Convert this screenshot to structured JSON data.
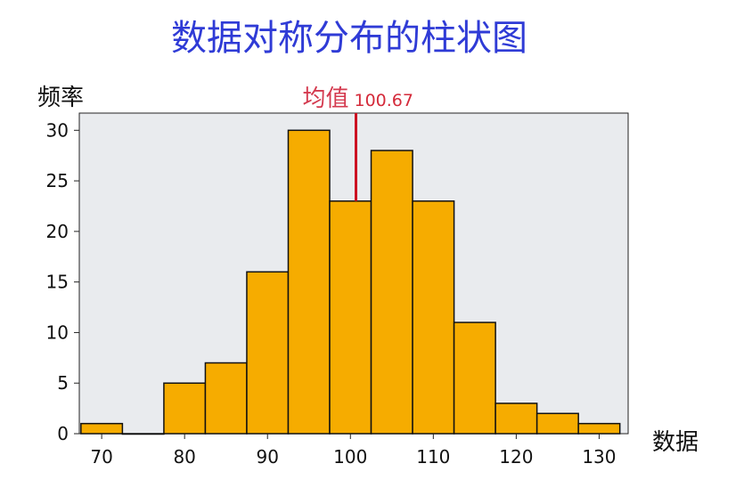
{
  "colors": {
    "title": "#2f3bd6",
    "bar_fill": "#f6ac00",
    "bar_stroke": "#111111",
    "plot_background": "#e9ebee",
    "mean_line": "#cc1122",
    "mean_label": "#d43a4f"
  },
  "chart_data": {
    "type": "bar",
    "title": "数据对称分布的柱状图",
    "xlabel": "数据",
    "ylabel": "频率",
    "xlim": [
      67.3,
      133.5
    ],
    "ylim": [
      0,
      31.7
    ],
    "x_ticks": [
      70,
      80,
      90,
      100,
      110,
      120,
      130
    ],
    "y_ticks": [
      0,
      5,
      10,
      15,
      20,
      25,
      30
    ],
    "bin_edges": [
      67.5,
      72.5,
      77.5,
      82.5,
      87.5,
      92.5,
      97.5,
      102.5,
      107.5,
      112.5,
      117.5,
      122.5,
      127.5,
      132.5
    ],
    "values": [
      1,
      0,
      5,
      7,
      16,
      30,
      23,
      28,
      23,
      11,
      3,
      2,
      1
    ],
    "mean": {
      "label": "均值",
      "value_text": "100.67",
      "value": 100.67
    },
    "grid": false,
    "legend": "none"
  }
}
